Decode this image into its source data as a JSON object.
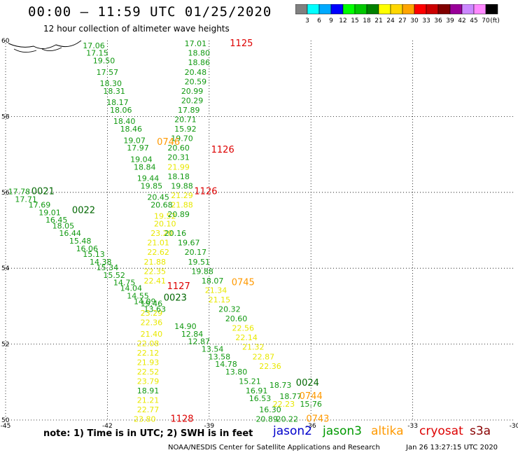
{
  "header": {
    "title": "00:00 – 11:59 UTC 01/25/2020",
    "subtitle": "12 hour collection of altimeter wave heights"
  },
  "colorbar": {
    "unit": "(ft)",
    "bins": [
      {
        "label": "3",
        "color": "#808080"
      },
      {
        "label": "6",
        "color": "#00ffff"
      },
      {
        "label": "9",
        "color": "#00aaff"
      },
      {
        "label": "12",
        "color": "#0000ff"
      },
      {
        "label": "15",
        "color": "#00ff00"
      },
      {
        "label": "18",
        "color": "#00c800"
      },
      {
        "label": "21",
        "color": "#008000"
      },
      {
        "label": "24",
        "color": "#ffff00"
      },
      {
        "label": "27",
        "color": "#ffd700"
      },
      {
        "label": "30",
        "color": "#ffa500"
      },
      {
        "label": "33",
        "color": "#ff0000"
      },
      {
        "label": "36",
        "color": "#cc0000"
      },
      {
        "label": "39",
        "color": "#800000"
      },
      {
        "label": "42",
        "color": "#990099"
      },
      {
        "label": "45",
        "color": "#cc88ff"
      },
      {
        "label": "70",
        "color": "#ff88ff"
      },
      {
        "label": "",
        "color": "#000000"
      }
    ]
  },
  "map": {
    "lon_range": [
      -45,
      -30
    ],
    "lat_range": [
      50,
      60
    ],
    "lon_ticks": [
      "-45",
      "-42",
      "-39",
      "-36",
      "-33",
      "-30"
    ],
    "lat_ticks": [
      "60",
      "58",
      "56",
      "54",
      "52",
      "50"
    ],
    "grid": true
  },
  "chart_data": {
    "type": "scatter",
    "xlabel": "",
    "ylabel": "",
    "xlim": [
      -45,
      -30
    ],
    "ylim": [
      50,
      60
    ],
    "points": [
      {
        "x": -42.4,
        "y": 59.8,
        "v": "17.06",
        "c": "g"
      },
      {
        "x": -42.3,
        "y": 59.6,
        "v": "17.15",
        "c": "g"
      },
      {
        "x": -42.1,
        "y": 59.4,
        "v": "19.50",
        "c": "g"
      },
      {
        "x": -42.0,
        "y": 59.1,
        "v": "17.57",
        "c": "g"
      },
      {
        "x": -41.9,
        "y": 58.8,
        "v": "18.30",
        "c": "g"
      },
      {
        "x": -41.8,
        "y": 58.6,
        "v": "18.31",
        "c": "g"
      },
      {
        "x": -41.7,
        "y": 58.3,
        "v": "18.17",
        "c": "g"
      },
      {
        "x": -41.6,
        "y": 58.1,
        "v": "18.06",
        "c": "g"
      },
      {
        "x": -41.5,
        "y": 57.8,
        "v": "18.40",
        "c": "g"
      },
      {
        "x": -41.3,
        "y": 57.6,
        "v": "18.46",
        "c": "g"
      },
      {
        "x": -41.2,
        "y": 57.3,
        "v": "19.07",
        "c": "g"
      },
      {
        "x": -41.1,
        "y": 57.1,
        "v": "17.97",
        "c": "g"
      },
      {
        "x": -41.0,
        "y": 56.8,
        "v": "19.04",
        "c": "g"
      },
      {
        "x": -40.9,
        "y": 56.6,
        "v": "18.84",
        "c": "g"
      },
      {
        "x": -40.8,
        "y": 56.3,
        "v": "19.44",
        "c": "g"
      },
      {
        "x": -40.7,
        "y": 56.1,
        "v": "19.85",
        "c": "g"
      },
      {
        "x": -40.5,
        "y": 55.8,
        "v": "20.45",
        "c": "g"
      },
      {
        "x": -40.4,
        "y": 55.6,
        "v": "20.68",
        "c": "g"
      },
      {
        "x": -40.3,
        "y": 55.3,
        "v": "19.52",
        "c": "y"
      },
      {
        "x": -40.3,
        "y": 55.1,
        "v": "20.10",
        "c": "y"
      },
      {
        "x": -40.4,
        "y": 54.85,
        "v": "23.20",
        "c": "y"
      },
      {
        "x": -40.5,
        "y": 54.6,
        "v": "21.01",
        "c": "y"
      },
      {
        "x": -40.5,
        "y": 54.35,
        "v": "22.62",
        "c": "y"
      },
      {
        "x": -40.6,
        "y": 54.1,
        "v": "21.88",
        "c": "y"
      },
      {
        "x": -40.6,
        "y": 53.85,
        "v": "22.35",
        "c": "y"
      },
      {
        "x": -40.6,
        "y": 53.6,
        "v": "22.41",
        "c": "y"
      },
      {
        "x": -40.7,
        "y": 53.0,
        "v": "19.46",
        "c": "g"
      },
      {
        "x": -40.7,
        "y": 52.75,
        "v": "23.29",
        "c": "y"
      },
      {
        "x": -40.7,
        "y": 52.5,
        "v": "22.36",
        "c": "y"
      },
      {
        "x": -40.7,
        "y": 52.2,
        "v": "21.40",
        "c": "y"
      },
      {
        "x": -40.8,
        "y": 51.95,
        "v": "22.08",
        "c": "y"
      },
      {
        "x": -40.8,
        "y": 51.7,
        "v": "22.12",
        "c": "y"
      },
      {
        "x": -40.8,
        "y": 51.45,
        "v": "21.93",
        "c": "y"
      },
      {
        "x": -40.8,
        "y": 51.2,
        "v": "22.52",
        "c": "y"
      },
      {
        "x": -40.8,
        "y": 50.95,
        "v": "23.79",
        "c": "y"
      },
      {
        "x": -40.8,
        "y": 50.7,
        "v": "18.91",
        "c": "g"
      },
      {
        "x": -40.8,
        "y": 50.45,
        "v": "21.21",
        "c": "y"
      },
      {
        "x": -40.8,
        "y": 50.2,
        "v": "22.77",
        "c": "y"
      },
      {
        "x": -40.9,
        "y": 49.95,
        "v": "23.80",
        "c": "y"
      },
      {
        "x": -39.4,
        "y": 59.85,
        "v": "17.01",
        "c": "g"
      },
      {
        "x": -39.3,
        "y": 59.6,
        "v": "18.80",
        "c": "g"
      },
      {
        "x": -39.3,
        "y": 59.35,
        "v": "18.86",
        "c": "g"
      },
      {
        "x": -39.4,
        "y": 59.1,
        "v": "20.48",
        "c": "g"
      },
      {
        "x": -39.4,
        "y": 58.85,
        "v": "20.59",
        "c": "g"
      },
      {
        "x": -39.5,
        "y": 58.6,
        "v": "20.99",
        "c": "g"
      },
      {
        "x": -39.5,
        "y": 58.35,
        "v": "20.29",
        "c": "g"
      },
      {
        "x": -39.6,
        "y": 58.1,
        "v": "17.89",
        "c": "g"
      },
      {
        "x": -39.7,
        "y": 57.85,
        "v": "20.71",
        "c": "g"
      },
      {
        "x": -39.7,
        "y": 57.6,
        "v": "15.92",
        "c": "g"
      },
      {
        "x": -39.8,
        "y": 57.35,
        "v": "19.70",
        "c": "g"
      },
      {
        "x": -39.9,
        "y": 57.1,
        "v": "20.60",
        "c": "g"
      },
      {
        "x": -39.9,
        "y": 56.85,
        "v": "20.31",
        "c": "g"
      },
      {
        "x": -39.9,
        "y": 56.6,
        "v": "21.99",
        "c": "y"
      },
      {
        "x": -39.9,
        "y": 56.35,
        "v": "18.18",
        "c": "g"
      },
      {
        "x": -39.8,
        "y": 56.1,
        "v": "19.88",
        "c": "g"
      },
      {
        "x": -39.8,
        "y": 55.85,
        "v": "21.29",
        "c": "y"
      },
      {
        "x": -39.8,
        "y": 55.6,
        "v": "21.88",
        "c": "y"
      },
      {
        "x": -39.9,
        "y": 55.35,
        "v": "20.89",
        "c": "g"
      },
      {
        "x": -40.0,
        "y": 54.85,
        "v": "20.16",
        "c": "g"
      },
      {
        "x": -39.6,
        "y": 54.6,
        "v": "19.67",
        "c": "g"
      },
      {
        "x": -39.4,
        "y": 54.35,
        "v": "20.17",
        "c": "g"
      },
      {
        "x": -39.3,
        "y": 54.1,
        "v": "19.51",
        "c": "g"
      },
      {
        "x": -39.2,
        "y": 53.85,
        "v": "19.88",
        "c": "g"
      },
      {
        "x": -38.9,
        "y": 53.6,
        "v": "18.07",
        "c": "g"
      },
      {
        "x": -38.8,
        "y": 53.35,
        "v": "21.34",
        "c": "y"
      },
      {
        "x": -38.7,
        "y": 53.1,
        "v": "21.15",
        "c": "y"
      },
      {
        "x": -38.4,
        "y": 52.85,
        "v": "20.32",
        "c": "g"
      },
      {
        "x": -38.2,
        "y": 52.6,
        "v": "20.60",
        "c": "g"
      },
      {
        "x": -38.0,
        "y": 52.35,
        "v": "22.56",
        "c": "y"
      },
      {
        "x": -37.9,
        "y": 52.1,
        "v": "22.14",
        "c": "y"
      },
      {
        "x": -37.7,
        "y": 51.85,
        "v": "21.32",
        "c": "y"
      },
      {
        "x": -37.4,
        "y": 51.6,
        "v": "22.87",
        "c": "y"
      },
      {
        "x": -37.2,
        "y": 51.35,
        "v": "22.36",
        "c": "y"
      },
      {
        "x": -36.9,
        "y": 50.85,
        "v": "18.73",
        "c": "g"
      },
      {
        "x": -36.6,
        "y": 50.55,
        "v": "18.77",
        "c": "g"
      },
      {
        "x": -36.8,
        "y": 50.35,
        "v": "22.23",
        "c": "y"
      },
      {
        "x": -36.0,
        "y": 50.35,
        "v": "15.76",
        "c": "g"
      },
      {
        "x": -44.6,
        "y": 55.95,
        "v": "17.78",
        "c": "g"
      },
      {
        "x": -44.4,
        "y": 55.75,
        "v": "17.71",
        "c": "g"
      },
      {
        "x": -44.0,
        "y": 55.6,
        "v": "17.69",
        "c": "g"
      },
      {
        "x": -43.7,
        "y": 55.4,
        "v": "19.01",
        "c": "g"
      },
      {
        "x": -43.5,
        "y": 55.2,
        "v": "16.45",
        "c": "g"
      },
      {
        "x": -43.3,
        "y": 55.05,
        "v": "18.05",
        "c": "g"
      },
      {
        "x": -43.1,
        "y": 54.85,
        "v": "16.44",
        "c": "g"
      },
      {
        "x": -42.8,
        "y": 54.65,
        "v": "15.48",
        "c": "g"
      },
      {
        "x": -42.6,
        "y": 54.45,
        "v": "16.06",
        "c": "g"
      },
      {
        "x": -42.4,
        "y": 54.3,
        "v": "15.13",
        "c": "g"
      },
      {
        "x": -42.2,
        "y": 54.1,
        "v": "14.38",
        "c": "g"
      },
      {
        "x": -42.0,
        "y": 53.95,
        "v": "15.34",
        "c": "g"
      },
      {
        "x": -41.8,
        "y": 53.75,
        "v": "15.52",
        "c": "g"
      },
      {
        "x": -41.5,
        "y": 53.55,
        "v": "14.75",
        "c": "g"
      },
      {
        "x": -41.3,
        "y": 53.4,
        "v": "14.04",
        "c": "g"
      },
      {
        "x": -41.1,
        "y": 53.2,
        "v": "14.55",
        "c": "g"
      },
      {
        "x": -40.9,
        "y": 53.05,
        "v": "14.09",
        "c": "g"
      },
      {
        "x": -40.6,
        "y": 52.85,
        "v": "13.63",
        "c": "g"
      },
      {
        "x": -39.7,
        "y": 52.4,
        "v": "14.90",
        "c": "g"
      },
      {
        "x": -39.5,
        "y": 52.2,
        "v": "12.84",
        "c": "g"
      },
      {
        "x": -39.3,
        "y": 52.0,
        "v": "12.87",
        "c": "g"
      },
      {
        "x": -38.9,
        "y": 51.8,
        "v": "13.54",
        "c": "g"
      },
      {
        "x": -38.7,
        "y": 51.6,
        "v": "13.58",
        "c": "g"
      },
      {
        "x": -38.5,
        "y": 51.4,
        "v": "14.78",
        "c": "g"
      },
      {
        "x": -38.2,
        "y": 51.2,
        "v": "13.80",
        "c": "g"
      },
      {
        "x": -37.8,
        "y": 50.95,
        "v": "15.21",
        "c": "g"
      },
      {
        "x": -37.6,
        "y": 50.7,
        "v": "16.91",
        "c": "g"
      },
      {
        "x": -37.5,
        "y": 50.5,
        "v": "16.53",
        "c": "g"
      },
      {
        "x": -37.2,
        "y": 50.2,
        "v": "16.30",
        "c": "g"
      },
      {
        "x": -37.3,
        "y": 49.95,
        "v": "20.89",
        "c": "g"
      },
      {
        "x": -36.7,
        "y": 49.95,
        "v": "20.22",
        "c": "g"
      }
    ],
    "time_labels": [
      {
        "x": -38.05,
        "y": 59.85,
        "v": "1125",
        "c": "r"
      },
      {
        "x": -38.6,
        "y": 57.05,
        "v": "1126",
        "c": "r"
      },
      {
        "x": -39.1,
        "y": 55.95,
        "v": "1126",
        "c": "r"
      },
      {
        "x": -39.9,
        "y": 53.45,
        "v": "1127",
        "c": "r"
      },
      {
        "x": -39.8,
        "y": 49.95,
        "v": "1128",
        "c": "r"
      },
      {
        "x": -40.2,
        "y": 57.25,
        "v": "0746",
        "c": "o"
      },
      {
        "x": -38.0,
        "y": 53.55,
        "v": "0745",
        "c": "o"
      },
      {
        "x": -36.0,
        "y": 50.55,
        "v": "0744",
        "c": "o"
      },
      {
        "x": -35.8,
        "y": 49.95,
        "v": "0743",
        "c": "o"
      },
      {
        "x": -43.9,
        "y": 55.95,
        "v": "0021",
        "c": "d"
      },
      {
        "x": -42.7,
        "y": 55.45,
        "v": "0022",
        "c": "d"
      },
      {
        "x": -40.0,
        "y": 53.15,
        "v": "0023",
        "c": "d"
      },
      {
        "x": -36.1,
        "y": 50.9,
        "v": "0024",
        "c": "d"
      }
    ],
    "palette": {
      "g": "#119911",
      "y": "#e8e800",
      "r": "#dd0000",
      "o": "#ff9900",
      "d": "#006600"
    }
  },
  "legend": {
    "note": "note: 1) Time is in UTC; 2) SWH is in feet",
    "sats": [
      {
        "name": "jason2",
        "color": "#0000cc"
      },
      {
        "name": "jason3",
        "color": "#009900"
      },
      {
        "name": "altika",
        "color": "#ff9900"
      },
      {
        "name": "cryosat",
        "color": "#dd0000"
      },
      {
        "name": "s3a",
        "color": "#880000"
      }
    ],
    "credit": "NOAA/NESDIS Center for Satellite Applications and Research",
    "generated": "Jan 26 13:27:15 UTC 2020"
  }
}
